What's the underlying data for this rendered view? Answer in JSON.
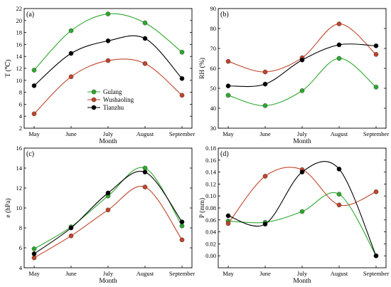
{
  "chart_data": [
    {
      "id": "a",
      "type": "line",
      "panel_label": "(a)",
      "xlabel": "Month",
      "ylabel": "T (℃)",
      "categories": [
        "May",
        "June",
        "July",
        "August",
        "September"
      ],
      "ylim": [
        2,
        22
      ],
      "yticks": [
        2,
        4,
        6,
        8,
        10,
        12,
        14,
        16,
        18,
        20,
        22
      ],
      "series": [
        {
          "name": "Gulang",
          "values": [
            11.7,
            18.3,
            21.1,
            19.6,
            14.7
          ]
        },
        {
          "name": "Wushaoling",
          "values": [
            4.4,
            10.6,
            13.3,
            12.8,
            7.5
          ]
        },
        {
          "name": "Tianzhu",
          "values": [
            9.1,
            14.5,
            16.6,
            17.0,
            10.3
          ]
        }
      ],
      "legend": "lower-left"
    },
    {
      "id": "b",
      "type": "line",
      "panel_label": "(b)",
      "xlabel": "Month",
      "ylabel": "RH (%)",
      "categories": [
        "May",
        "June",
        "July",
        "August",
        "September"
      ],
      "ylim": [
        30,
        90
      ],
      "yticks": [
        30,
        40,
        50,
        60,
        70,
        80,
        90
      ],
      "series": [
        {
          "name": "Gulang",
          "values": [
            46.5,
            41.3,
            48.8,
            65.0,
            50.6
          ]
        },
        {
          "name": "Wushaoling",
          "values": [
            63.5,
            58.2,
            65.3,
            82.3,
            67.0
          ]
        },
        {
          "name": "Tianzhu",
          "values": [
            51.2,
            52.1,
            64.2,
            71.8,
            71.3
          ]
        }
      ]
    },
    {
      "id": "c",
      "type": "line",
      "panel_label": "(c)",
      "xlabel": "Month",
      "ylabel": "e (hPa)",
      "categories": [
        "May",
        "June",
        "July",
        "August",
        "September"
      ],
      "ylim": [
        4,
        16
      ],
      "yticks": [
        4,
        6,
        8,
        10,
        12,
        14,
        16
      ],
      "series": [
        {
          "name": "Gulang",
          "values": [
            5.9,
            8.1,
            11.2,
            14.0,
            8.2
          ]
        },
        {
          "name": "Wushaoling",
          "values": [
            5.0,
            7.2,
            9.8,
            12.1,
            6.8
          ]
        },
        {
          "name": "Tianzhu",
          "values": [
            5.4,
            8.0,
            11.5,
            13.6,
            8.6
          ]
        }
      ]
    },
    {
      "id": "d",
      "type": "line",
      "panel_label": "(d)",
      "xlabel": "Month",
      "ylabel": "P (mm)",
      "categories": [
        "May",
        "June",
        "July",
        "August",
        "September"
      ],
      "ylim": [
        -0.02,
        0.18
      ],
      "yticks": [
        0.0,
        0.02,
        0.04,
        0.06,
        0.08,
        0.1,
        0.12,
        0.14,
        0.16,
        0.18
      ],
      "ytick_labels": [
        "0.00",
        "0.02",
        "0.04",
        "0.06",
        "0.08",
        "0.10",
        "0.12",
        "0.14",
        "0.16",
        "0.18"
      ],
      "series": [
        {
          "name": "Gulang",
          "values": [
            0.058,
            0.056,
            0.074,
            0.103,
            0.0
          ]
        },
        {
          "name": "Wushaoling",
          "values": [
            0.054,
            0.133,
            0.144,
            0.085,
            0.107
          ]
        },
        {
          "name": "Tianzhu",
          "values": [
            0.067,
            0.053,
            0.14,
            0.145,
            0.0
          ]
        }
      ]
    }
  ],
  "series_colors": {
    "Gulang": "#2ea82e",
    "Wushaoling": "#c0442a",
    "Tianzhu": "#000000"
  }
}
